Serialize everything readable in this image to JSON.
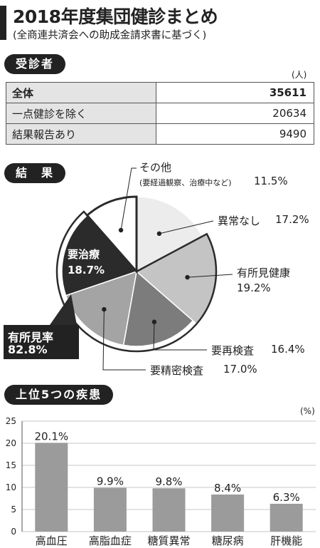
{
  "header": {
    "title": "2018年度集団健診まとめ",
    "subtitle": "(全商連共済会への助成金請求書に基づく)"
  },
  "patients": {
    "section_label": "受診者",
    "unit": "(人)",
    "rows": [
      {
        "label": "全体",
        "value": "35611"
      },
      {
        "label": "一点健診を除く",
        "value": "20634"
      },
      {
        "label": "結果報告あり",
        "value": "9490"
      }
    ]
  },
  "results": {
    "section_label": "結　果",
    "finding_rate": {
      "label": "有所見率",
      "value": "82.8%"
    }
  },
  "diseases": {
    "section_label": "上位5つの疾患",
    "unit": "(%)"
  },
  "colors": {
    "dark": "#2b2b2b",
    "none": "#ececec",
    "healthy": "#c4c4c4",
    "recheck": "#7c7c7c",
    "detailed": "#a4a4a4",
    "bar": "#9b9b9b"
  },
  "chart_data": [
    {
      "type": "pie",
      "slices": [
        {
          "label": "異常なし",
          "value": 17.2,
          "display": "17.2%"
        },
        {
          "label": "有所見健康",
          "value": 19.2,
          "display": "19.2%"
        },
        {
          "label": "要再検査",
          "value": 16.4,
          "display": "16.4%"
        },
        {
          "label": "要精密検査",
          "value": 17.0,
          "display": "17.0%"
        },
        {
          "label": "要治療",
          "value": 18.7,
          "display": "18.7%"
        },
        {
          "label": "その他",
          "sublabel": "(要経過観察、治療中など)",
          "value": 11.5,
          "display": "11.5%"
        }
      ]
    },
    {
      "type": "bar",
      "categories": [
        "高血圧",
        "高脂血症",
        "糖質異常",
        "糖尿病",
        "肝機能"
      ],
      "values": [
        20.1,
        9.9,
        9.8,
        8.4,
        6.3
      ],
      "labels": [
        "20.1%",
        "9.9%",
        "9.8%",
        "8.4%",
        "6.3%"
      ],
      "ylim": [
        0,
        25
      ],
      "yticks": [
        0,
        5,
        10,
        15,
        20,
        25
      ],
      "grid": true
    }
  ]
}
